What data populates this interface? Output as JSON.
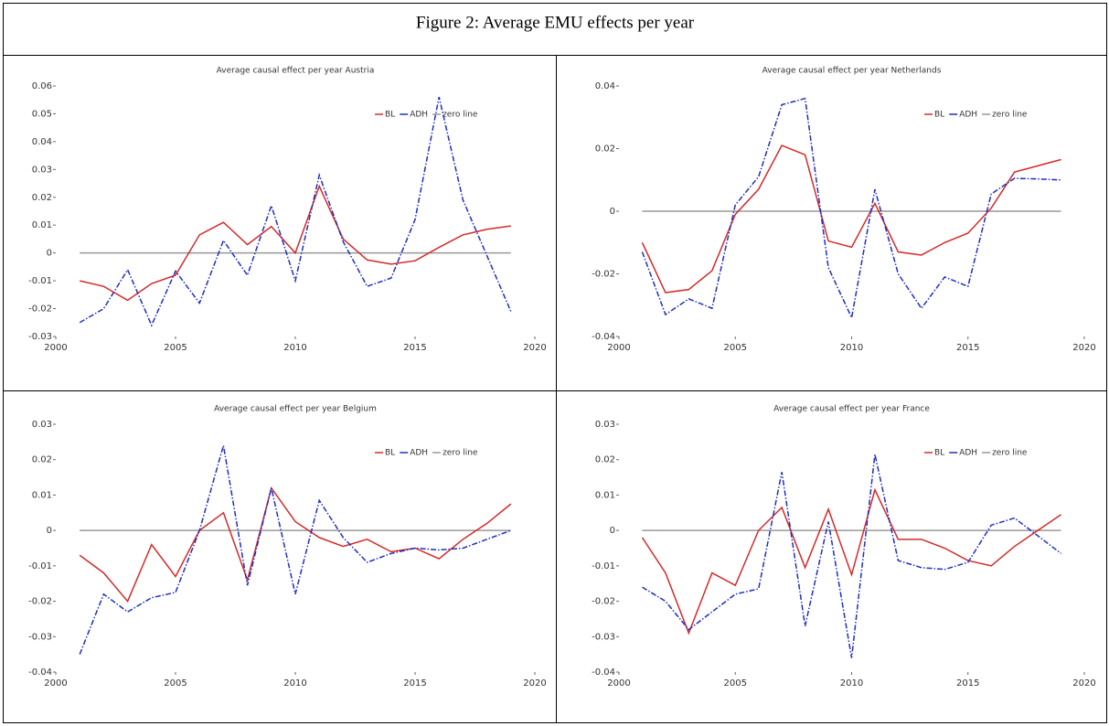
{
  "title": "Figure 2: Average EMU effects per year",
  "chart_data": [
    {
      "type": "line",
      "title": "Average causal effect per year Austria",
      "x": [
        2001,
        2002,
        2003,
        2004,
        2005,
        2006,
        2007,
        2008,
        2009,
        2010,
        2011,
        2012,
        2013,
        2014,
        2015,
        2016,
        2017,
        2018,
        2019
      ],
      "xlim": [
        2000,
        2020
      ],
      "xticks": [
        2000,
        2005,
        2010,
        2015,
        2020
      ],
      "ylim": [
        -0.03,
        0.06
      ],
      "yticks": [
        -0.03,
        -0.02,
        -0.01,
        0,
        0.01,
        0.02,
        0.03,
        0.04,
        0.05,
        0.06
      ],
      "legend": "upper right",
      "series": [
        {
          "name": "BL",
          "color": "#d42a2a",
          "linestyle": "solid",
          "values": [
            -0.01,
            -0.012,
            -0.017,
            -0.011,
            -0.008,
            0.0065,
            0.011,
            0.003,
            0.0095,
            0.0,
            0.024,
            0.005,
            -0.0025,
            -0.004,
            -0.0028,
            0.002,
            0.0065,
            0.0085,
            0.0097
          ]
        },
        {
          "name": "ADH",
          "color": "#1f2fbf",
          "linestyle": "dashdot",
          "values": [
            -0.025,
            -0.02,
            -0.006,
            -0.026,
            -0.0065,
            -0.018,
            0.0045,
            -0.008,
            0.017,
            -0.01,
            0.028,
            0.004,
            -0.012,
            -0.009,
            0.012,
            0.056,
            0.019,
            -0.001,
            -0.021
          ]
        },
        {
          "name": "zero line",
          "color": "#999999",
          "linestyle": "solid",
          "values": [
            0,
            0,
            0,
            0,
            0,
            0,
            0,
            0,
            0,
            0,
            0,
            0,
            0,
            0,
            0,
            0,
            0,
            0,
            0
          ]
        }
      ]
    },
    {
      "type": "line",
      "title": "Average causal effect per year Netherlands",
      "x": [
        2001,
        2002,
        2003,
        2004,
        2005,
        2006,
        2007,
        2008,
        2009,
        2010,
        2011,
        2012,
        2013,
        2014,
        2015,
        2016,
        2017,
        2018,
        2019
      ],
      "xlim": [
        2000,
        2020
      ],
      "xticks": [
        2000,
        2005,
        2010,
        2015,
        2020
      ],
      "ylim": [
        -0.04,
        0.04
      ],
      "yticks": [
        -0.04,
        -0.02,
        0,
        0.02,
        0.04
      ],
      "legend": "upper right",
      "series": [
        {
          "name": "BL",
          "color": "#d42a2a",
          "linestyle": "solid",
          "values": [
            -0.01,
            -0.026,
            -0.025,
            -0.019,
            -0.001,
            0.007,
            0.021,
            0.018,
            -0.0095,
            -0.0115,
            0.0025,
            -0.013,
            -0.014,
            -0.01,
            -0.007,
            0.001,
            0.0125,
            0.0145,
            0.0165
          ]
        },
        {
          "name": "ADH",
          "color": "#1f2fbf",
          "linestyle": "dashdot",
          "values": [
            -0.013,
            -0.033,
            -0.028,
            -0.031,
            0.002,
            0.011,
            0.034,
            0.036,
            -0.018,
            -0.034,
            0.007,
            -0.02,
            -0.031,
            -0.021,
            -0.024,
            0.0055,
            0.0105,
            0.0103,
            0.01
          ]
        },
        {
          "name": "zero line",
          "color": "#999999",
          "linestyle": "solid",
          "values": [
            0,
            0,
            0,
            0,
            0,
            0,
            0,
            0,
            0,
            0,
            0,
            0,
            0,
            0,
            0,
            0,
            0,
            0,
            0
          ]
        }
      ]
    },
    {
      "type": "line",
      "title": "Average causal effect per year Belgium",
      "x": [
        2001,
        2002,
        2003,
        2004,
        2005,
        2006,
        2007,
        2008,
        2009,
        2010,
        2011,
        2012,
        2013,
        2014,
        2015,
        2016,
        2017,
        2018,
        2019
      ],
      "xlim": [
        2000,
        2020
      ],
      "xticks": [
        2000,
        2005,
        2010,
        2015,
        2020
      ],
      "ylim": [
        -0.04,
        0.03
      ],
      "yticks": [
        -0.04,
        -0.03,
        -0.02,
        -0.01,
        0,
        0.01,
        0.02,
        0.03
      ],
      "legend": "upper right",
      "series": [
        {
          "name": "BL",
          "color": "#d42a2a",
          "linestyle": "solid",
          "values": [
            -0.007,
            -0.012,
            -0.02,
            -0.004,
            -0.013,
            0.0,
            0.005,
            -0.014,
            0.012,
            0.0025,
            -0.002,
            -0.0045,
            -0.0025,
            -0.006,
            -0.005,
            -0.008,
            -0.0025,
            0.002,
            0.0075
          ]
        },
        {
          "name": "ADH",
          "color": "#1f2fbf",
          "linestyle": "dashdot",
          "values": [
            -0.035,
            -0.018,
            -0.023,
            -0.019,
            -0.0175,
            0.0,
            0.024,
            -0.0155,
            0.012,
            -0.018,
            0.0085,
            -0.002,
            -0.009,
            -0.0065,
            -0.005,
            -0.0055,
            -0.005,
            -0.0025,
            0.0
          ]
        },
        {
          "name": "zero line",
          "color": "#999999",
          "linestyle": "solid",
          "values": [
            0,
            0,
            0,
            0,
            0,
            0,
            0,
            0,
            0,
            0,
            0,
            0,
            0,
            0,
            0,
            0,
            0,
            0,
            0
          ]
        }
      ]
    },
    {
      "type": "line",
      "title": "Average causal effect per year France",
      "x": [
        2001,
        2002,
        2003,
        2004,
        2005,
        2006,
        2007,
        2008,
        2009,
        2010,
        2011,
        2012,
        2013,
        2014,
        2015,
        2016,
        2017,
        2018,
        2019
      ],
      "xlim": [
        2000,
        2020
      ],
      "xticks": [
        2000,
        2005,
        2010,
        2015,
        2020
      ],
      "ylim": [
        -0.04,
        0.03
      ],
      "yticks": [
        -0.04,
        -0.03,
        -0.02,
        -0.01,
        0,
        0.01,
        0.02,
        0.03
      ],
      "legend": "upper right",
      "series": [
        {
          "name": "BL",
          "color": "#d42a2a",
          "linestyle": "solid",
          "values": [
            -0.002,
            -0.012,
            -0.029,
            -0.012,
            -0.0155,
            0.0,
            0.0065,
            -0.0105,
            0.006,
            -0.0125,
            0.0115,
            -0.0025,
            -0.0025,
            -0.005,
            -0.0085,
            -0.01,
            -0.0045,
            0.0,
            0.0045
          ]
        },
        {
          "name": "ADH",
          "color": "#1f2fbf",
          "linestyle": "dashdot",
          "values": [
            -0.016,
            -0.02,
            -0.028,
            -0.023,
            -0.018,
            -0.0165,
            0.0165,
            -0.027,
            0.0025,
            -0.036,
            0.0215,
            -0.0085,
            -0.0105,
            -0.011,
            -0.009,
            0.0015,
            0.0035,
            -0.0015,
            -0.0065
          ]
        },
        {
          "name": "zero line",
          "color": "#999999",
          "linestyle": "solid",
          "values": [
            0,
            0,
            0,
            0,
            0,
            0,
            0,
            0,
            0,
            0,
            0,
            0,
            0,
            0,
            0,
            0,
            0,
            0,
            0
          ]
        }
      ]
    }
  ]
}
